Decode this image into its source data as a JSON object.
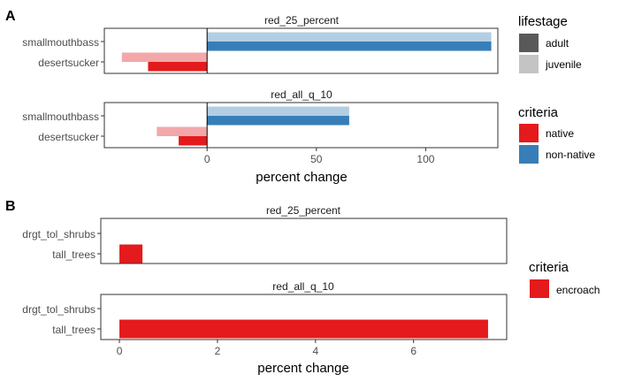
{
  "chart_data": [
    {
      "panel_label": "A",
      "type": "bar",
      "orientation": "horizontal",
      "xlabel": "percent change",
      "xlim": [
        -47,
        133
      ],
      "xticks": [
        0,
        50,
        100
      ],
      "grid": false,
      "categories": [
        "smallmouthbass",
        "desertsucker"
      ],
      "facets": [
        {
          "title": "red_25_percent",
          "bars": [
            {
              "category": "smallmouthbass",
              "lifestage": "juvenile",
              "criteria": "non-native",
              "value": 130
            },
            {
              "category": "smallmouthbass",
              "lifestage": "adult",
              "criteria": "non-native",
              "value": 130
            },
            {
              "category": "desertsucker",
              "lifestage": "juvenile",
              "criteria": "native",
              "value": -39
            },
            {
              "category": "desertsucker",
              "lifestage": "adult",
              "criteria": "native",
              "value": -27
            }
          ]
        },
        {
          "title": "red_all_q_10",
          "bars": [
            {
              "category": "smallmouthbass",
              "lifestage": "juvenile",
              "criteria": "non-native",
              "value": 65
            },
            {
              "category": "smallmouthbass",
              "lifestage": "adult",
              "criteria": "non-native",
              "value": 65
            },
            {
              "category": "desertsucker",
              "lifestage": "juvenile",
              "criteria": "native",
              "value": -23
            },
            {
              "category": "desertsucker",
              "lifestage": "adult",
              "criteria": "native",
              "value": -13
            }
          ]
        }
      ],
      "legends": [
        {
          "title": "lifestage",
          "items": [
            {
              "label": "adult",
              "color": "#595959"
            },
            {
              "label": "juvenile",
              "color": "#c4c4c4"
            }
          ]
        },
        {
          "title": "criteria",
          "items": [
            {
              "label": "native",
              "color": "#e41a1c"
            },
            {
              "label": "non-native",
              "color": "#377eb8"
            }
          ]
        }
      ],
      "colors": {
        "native": {
          "adult": "#e41a1c",
          "juvenile": "#f2a8a9"
        },
        "non-native": {
          "adult": "#377eb8",
          "juvenile": "#b3cde3"
        }
      },
      "legend_position": "right"
    },
    {
      "panel_label": "B",
      "type": "bar",
      "orientation": "horizontal",
      "xlabel": "percent change",
      "xlim": [
        -0.38,
        7.9
      ],
      "xticks": [
        0,
        2,
        4,
        6
      ],
      "grid": false,
      "categories": [
        "drgt_tol_shrubs",
        "tall_trees"
      ],
      "facets": [
        {
          "title": "red_25_percent",
          "bars": [
            {
              "category": "tall_trees",
              "criteria": "encroach",
              "value": 0.47
            }
          ]
        },
        {
          "title": "red_all_q_10",
          "bars": [
            {
              "category": "tall_trees",
              "criteria": "encroach",
              "value": 7.52
            }
          ]
        }
      ],
      "legends": [
        {
          "title": "criteria",
          "items": [
            {
              "label": "encroach",
              "color": "#e41a1c"
            }
          ]
        }
      ],
      "legend_position": "right"
    }
  ]
}
